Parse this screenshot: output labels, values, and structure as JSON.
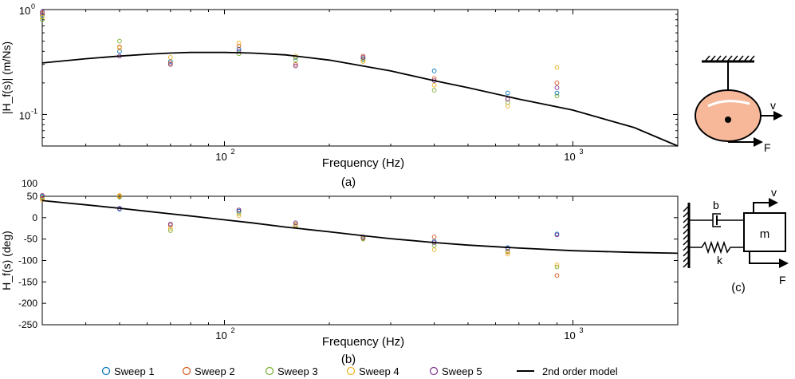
{
  "figure": {
    "caption_a": "(a)",
    "caption_b": "(b)",
    "caption_c": "(c)"
  },
  "legend": {
    "items": [
      {
        "label": "Sweep 1",
        "marker": "circle",
        "color": "#0072BD"
      },
      {
        "label": "Sweep 2",
        "marker": "circle",
        "color": "#D95319"
      },
      {
        "label": "Sweep 3",
        "marker": "circle",
        "color": "#77AC30"
      },
      {
        "label": "Sweep 4",
        "marker": "circle",
        "color": "#EDB120"
      },
      {
        "label": "Sweep 5",
        "marker": "circle",
        "color": "#7E2F8E"
      },
      {
        "label": "2nd order model",
        "marker": "line",
        "color": "#000000"
      }
    ]
  },
  "schematic_top": {
    "v_label": "v",
    "f_label": "F",
    "mass_color": "#F6B899",
    "outline_color": "#000000"
  },
  "schematic_bottom": {
    "b_label": "b",
    "k_label": "k",
    "m_label": "m",
    "v_label": "v",
    "f_label": "F"
  },
  "chart_data": [
    {
      "type": "scatter",
      "panel": "(a)",
      "xlabel": "Frequency (Hz)",
      "ylabel": "|H_f(s)| (m/Ns)",
      "x_scale": "log",
      "y_scale": "log",
      "xlim": [
        30,
        2000
      ],
      "ylim": [
        0.05,
        1.0
      ],
      "x_ticks": [
        {
          "value": 100,
          "base": "10",
          "exp": "2"
        },
        {
          "value": 1000,
          "base": "10",
          "exp": "3"
        }
      ],
      "y_ticks": [
        {
          "value": 0.1,
          "base": "10",
          "exp": "-1"
        },
        {
          "value": 1.0,
          "base": "10",
          "exp": "0"
        }
      ],
      "grid": false,
      "series": [
        {
          "name": "Sweep 1",
          "color": "#0072BD",
          "x": [
            30,
            50,
            70,
            110,
            160,
            250,
            400,
            650,
            900
          ],
          "y": [
            0.88,
            0.4,
            0.32,
            0.42,
            0.35,
            0.34,
            0.26,
            0.16,
            0.16
          ]
        },
        {
          "name": "Sweep 2",
          "color": "#D95319",
          "x": [
            30,
            50,
            70,
            110,
            160,
            250,
            400,
            650,
            900
          ],
          "y": [
            0.92,
            0.44,
            0.31,
            0.45,
            0.3,
            0.36,
            0.22,
            0.14,
            0.2
          ]
        },
        {
          "name": "Sweep 3",
          "color": "#77AC30",
          "x": [
            30,
            50,
            70,
            110,
            160,
            250,
            400,
            650,
            900
          ],
          "y": [
            0.8,
            0.5,
            0.3,
            0.38,
            0.33,
            0.33,
            0.17,
            0.13,
            0.15
          ]
        },
        {
          "name": "Sweep 4",
          "color": "#EDB120",
          "x": [
            30,
            50,
            70,
            110,
            160,
            250,
            400,
            650,
            900
          ],
          "y": [
            0.85,
            0.43,
            0.35,
            0.48,
            0.36,
            0.32,
            0.19,
            0.12,
            0.28
          ]
        },
        {
          "name": "Sweep 5",
          "color": "#7E2F8E",
          "x": [
            30,
            50,
            70,
            110,
            160,
            250,
            400,
            650,
            900
          ],
          "y": [
            0.95,
            0.36,
            0.3,
            0.4,
            0.29,
            0.35,
            0.21,
            0.14,
            0.18
          ]
        },
        {
          "name": "2nd order model",
          "type": "line",
          "color": "#000000",
          "x": [
            30,
            40,
            50,
            60,
            70,
            80,
            100,
            120,
            150,
            200,
            250,
            300,
            400,
            500,
            700,
            1000,
            1500,
            2000
          ],
          "y": [
            0.31,
            0.34,
            0.36,
            0.375,
            0.385,
            0.39,
            0.39,
            0.385,
            0.37,
            0.33,
            0.29,
            0.26,
            0.21,
            0.18,
            0.14,
            0.11,
            0.075,
            0.05
          ]
        }
      ]
    },
    {
      "type": "scatter",
      "panel": "(b)",
      "xlabel": "Frequency (Hz)",
      "ylabel": "H_f(s) (deg)",
      "x_scale": "log",
      "y_scale": "linear",
      "xlim": [
        30,
        2000
      ],
      "ylim": [
        -250,
        50
      ],
      "x_ticks": [
        {
          "value": 100,
          "base": "10",
          "exp": "2"
        },
        {
          "value": 1000,
          "base": "10",
          "exp": "3"
        }
      ],
      "y_ticks": [
        50,
        0,
        -50,
        -100,
        -150,
        -200,
        -250
      ],
      "y_tick_labels_extra": [
        {
          "value": 100,
          "label": "100"
        },
        {
          "value": 50,
          "label": "50"
        }
      ],
      "grid": false,
      "series": [
        {
          "name": "Sweep 1",
          "color": "#0072BD",
          "x": [
            30,
            50,
            70,
            110,
            160,
            250,
            400,
            650,
            900
          ],
          "y": [
            50,
            20,
            -15,
            15,
            -15,
            -45,
            -55,
            -70,
            -38
          ]
        },
        {
          "name": "Sweep 2",
          "color": "#D95319",
          "x": [
            30,
            50,
            70,
            110,
            160,
            250,
            400,
            650,
            900
          ],
          "y": [
            45,
            50,
            -18,
            18,
            -18,
            -48,
            -45,
            -80,
            -135
          ]
        },
        {
          "name": "Sweep 3",
          "color": "#77AC30",
          "x": [
            30,
            50,
            70,
            110,
            160,
            250,
            400,
            650,
            900
          ],
          "y": [
            48,
            48,
            -30,
            10,
            -20,
            -50,
            -65,
            -78,
            -115
          ]
        },
        {
          "name": "Sweep 4",
          "color": "#EDB120",
          "x": [
            30,
            50,
            70,
            110,
            160,
            250,
            400,
            650,
            900
          ],
          "y": [
            42,
            52,
            -25,
            5,
            -15,
            -47,
            -75,
            -85,
            -110
          ]
        },
        {
          "name": "Sweep 5",
          "color": "#7E2F8E",
          "x": [
            30,
            50,
            70,
            110,
            160,
            250,
            400,
            650,
            900
          ],
          "y": [
            52,
            22,
            -15,
            18,
            -12,
            -46,
            -58,
            -72,
            -40
          ]
        },
        {
          "name": "2nd order model",
          "type": "line",
          "color": "#000000",
          "x": [
            30,
            40,
            50,
            60,
            70,
            80,
            100,
            120,
            150,
            200,
            250,
            300,
            400,
            500,
            700,
            1000,
            1500,
            2000
          ],
          "y": [
            40,
            30,
            22,
            15,
            9,
            4,
            -5,
            -12,
            -22,
            -33,
            -42,
            -49,
            -58,
            -64,
            -71,
            -77,
            -81,
            -83
          ]
        }
      ]
    }
  ]
}
